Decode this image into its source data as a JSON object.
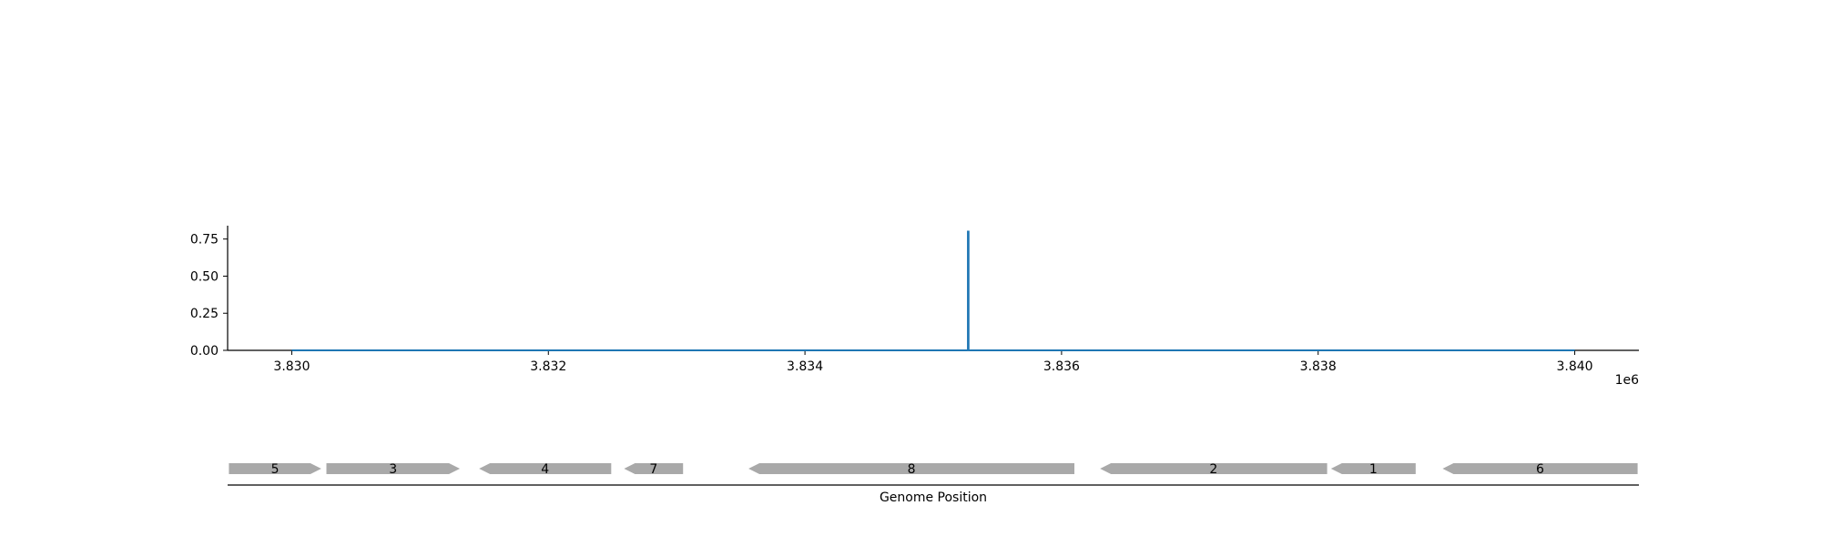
{
  "colors": {
    "signal_line": "#1f77b4",
    "gene_fill": "#a9a9a9",
    "axis": "#000000"
  },
  "chart_data": [
    {
      "type": "line",
      "title": "",
      "xlabel": "",
      "ylabel": "",
      "x_offset_label": "1e6",
      "xlim": [
        3829500,
        3840500
      ],
      "ylim": [
        0,
        0.84
      ],
      "x_ticks": [
        3830000,
        3832000,
        3834000,
        3836000,
        3838000,
        3840000
      ],
      "x_tick_labels": [
        "3.830",
        "3.832",
        "3.834",
        "3.836",
        "3.838",
        "3.840"
      ],
      "y_ticks": [
        0,
        0.25,
        0.5,
        0.75
      ],
      "y_tick_labels": [
        "0.00",
        "0.25",
        "0.50",
        "0.75"
      ],
      "grid": false,
      "series": [
        {
          "x": [
            3830000,
            3835270,
            3835270,
            3835275,
            3835275,
            3840000
          ],
          "y": [
            0,
            0,
            0.8,
            0.8,
            0,
            0
          ]
        }
      ]
    },
    {
      "type": "gene-track",
      "xlabel": "Genome Position",
      "xlim": [
        3829500,
        3840500
      ],
      "genes": [
        {
          "label": "5",
          "start": 3829510,
          "end": 3830230,
          "strand": "+"
        },
        {
          "label": "3",
          "start": 3830270,
          "end": 3831310,
          "strand": "+"
        },
        {
          "label": "4",
          "start": 3831460,
          "end": 3832490,
          "strand": "-"
        },
        {
          "label": "7",
          "start": 3832590,
          "end": 3833050,
          "strand": "-"
        },
        {
          "label": "8",
          "start": 3833560,
          "end": 3836100,
          "strand": "-"
        },
        {
          "label": "2",
          "start": 3836300,
          "end": 3838070,
          "strand": "-"
        },
        {
          "label": "1",
          "start": 3838100,
          "end": 3838760,
          "strand": "-"
        },
        {
          "label": "6",
          "start": 3838970,
          "end": 3840490,
          "strand": "-"
        }
      ]
    }
  ]
}
